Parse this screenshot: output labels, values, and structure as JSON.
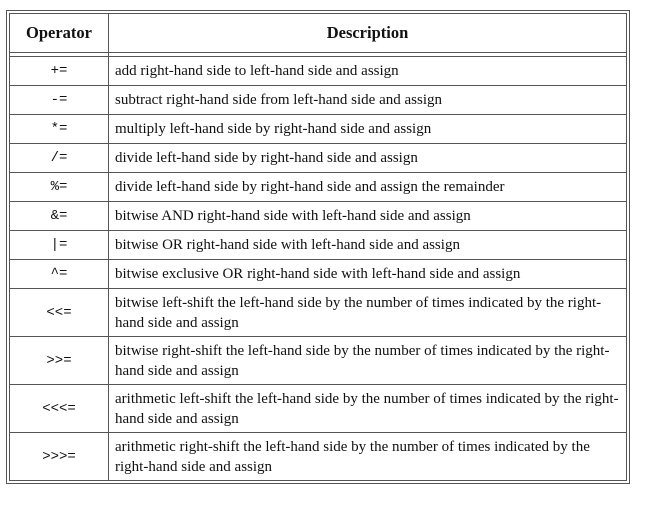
{
  "table": {
    "headers": {
      "operator": "Operator",
      "description": "Description"
    },
    "rows": [
      {
        "operator": "+=",
        "description": "add right-hand side to left-hand side and assign"
      },
      {
        "operator": "-=",
        "description": "subtract right-hand side from left-hand side and assign"
      },
      {
        "operator": "*=",
        "description": "multiply left-hand side by right-hand side and assign"
      },
      {
        "operator": "/=",
        "description": "divide left-hand side by right-hand side and assign"
      },
      {
        "operator": "%=",
        "description": "divide left-hand side by right-hand side and assign the remainder"
      },
      {
        "operator": "&=",
        "description": "bitwise AND right-hand side with left-hand side and assign"
      },
      {
        "operator": "|=",
        "description": "bitwise OR right-hand side with left-hand side and assign"
      },
      {
        "operator": "^=",
        "description": "bitwise exclusive OR right-hand side with left-hand side and assign"
      },
      {
        "operator": "<<=",
        "description": "bitwise left-shift the left-hand side by the number of times indicated by the right-hand side and assign"
      },
      {
        "operator": ">>=",
        "description": "bitwise right-shift the left-hand side by the number of times indicated by the right-hand side and assign"
      },
      {
        "operator": "<<<=",
        "description": "arithmetic left-shift the left-hand side by the number of times indicated by the right-hand side and assign"
      },
      {
        "operator": ">>>=",
        "description": "arithmetic right-shift the left-hand side by the number of times indicated by the right-hand side and assign"
      }
    ]
  }
}
